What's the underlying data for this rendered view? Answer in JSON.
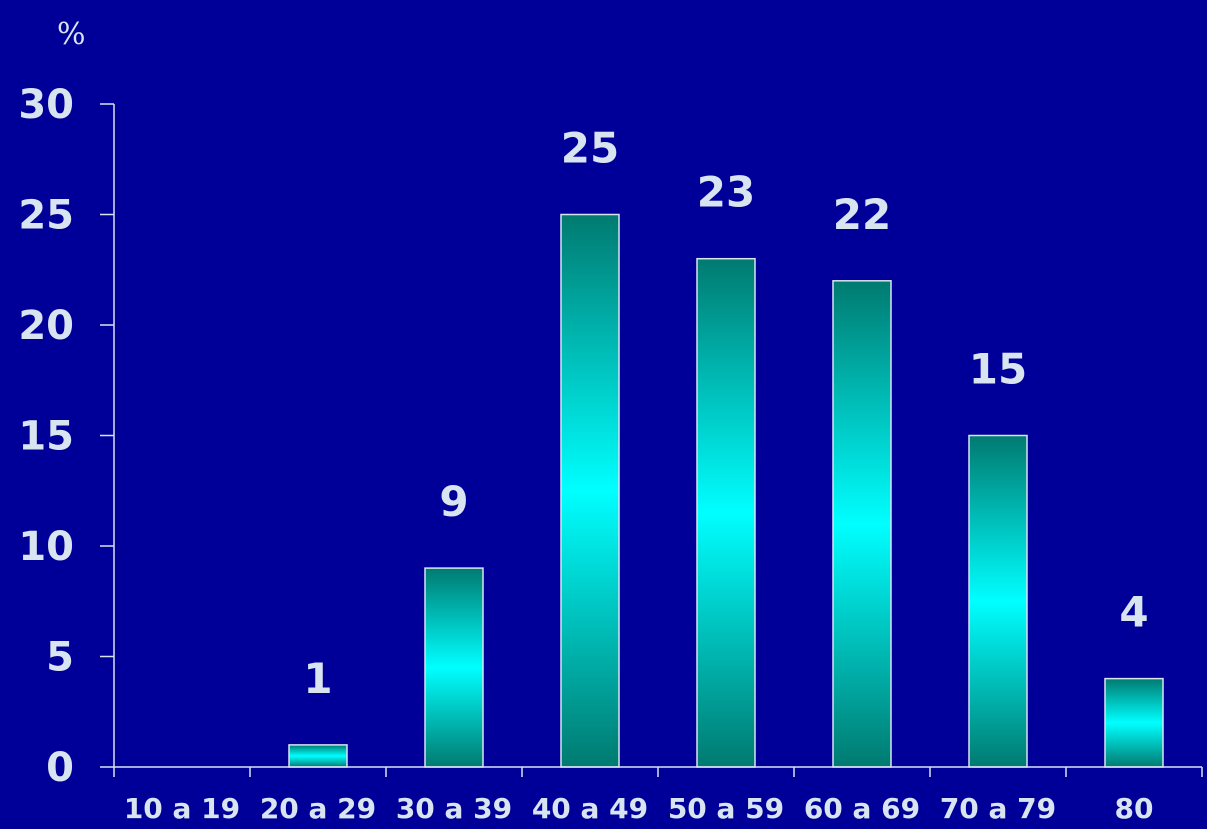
{
  "chart_data": {
    "type": "bar",
    "title": "",
    "xlabel": "",
    "ylabel": "%",
    "categories": [
      "10 a 19",
      "20 a 29",
      "30 a 39",
      "40 a 49",
      "50 a 59",
      "60 a 69",
      "70 a 79",
      "80"
    ],
    "values": [
      0,
      1,
      9,
      25,
      23,
      22,
      15,
      4
    ],
    "data_labels": [
      "",
      "1",
      "9",
      "25",
      "23",
      "22",
      "15",
      "4"
    ],
    "ylim": [
      0,
      30
    ],
    "yticks": [
      0,
      5,
      10,
      15,
      20,
      25,
      30
    ],
    "grid": false,
    "legend": "none",
    "colors": {
      "background": "#000099",
      "text": "#d8e4f0",
      "axis": "#d8e4f0",
      "bar_edge": "#007a70",
      "bar_center": "#00ffff"
    }
  }
}
